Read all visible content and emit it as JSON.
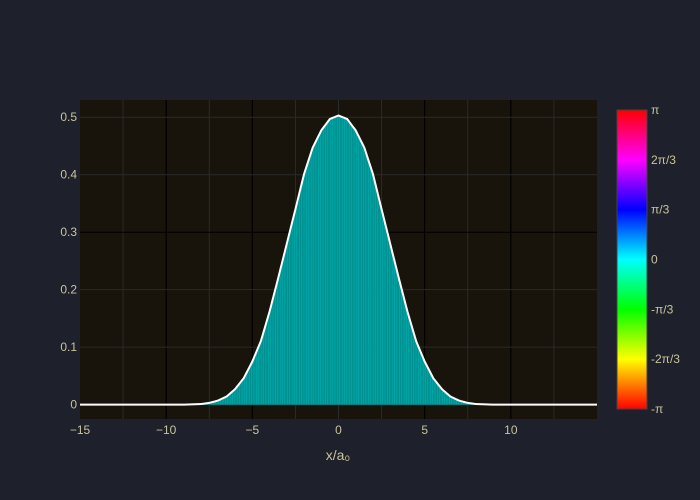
{
  "colors": {
    "page_bg": "#1e212b",
    "plot_bg": "#18130b",
    "grid": "#2a2a2a",
    "zero_line": "#000000",
    "fill": "#00a3a3",
    "fill_stroke": "#007f7f",
    "curve": "#ffffff",
    "tick_text": "#c9c39a",
    "axis_title": "#c9c39a"
  },
  "chart_data": {
    "type": "area",
    "title": "",
    "xlabel": "x/a₀",
    "ylabel": "",
    "xlim": [
      -15,
      15
    ],
    "ylim": [
      -0.025,
      0.53
    ],
    "xticks": [
      -15,
      -10,
      -5,
      0,
      5,
      10
    ],
    "xtick_labels": [
      "−15",
      "−10",
      "−5",
      "0",
      "5",
      "10"
    ],
    "yticks": [
      0,
      0.1,
      0.2,
      0.3,
      0.4,
      0.5
    ],
    "ytick_labels": [
      "0",
      "0.1",
      "0.2",
      "0.3",
      "0.4",
      "0.5"
    ],
    "grid": true,
    "series": [
      {
        "x": [
          -15,
          -14,
          -13,
          -12,
          -11,
          -10,
          -9,
          -8,
          -7.5,
          -7,
          -6.5,
          -6,
          -5.5,
          -5,
          -4.5,
          -4,
          -3.5,
          -3,
          -2.5,
          -2,
          -1.5,
          -1,
          -0.5,
          0,
          0.5,
          1,
          1.5,
          2,
          2.5,
          3,
          3.5,
          4,
          4.5,
          5,
          5.5,
          6,
          6.5,
          7,
          7.5,
          8,
          9,
          10,
          11,
          12,
          13,
          14,
          15
        ],
        "y": [
          0,
          0,
          0,
          0,
          0,
          0,
          0,
          0.001,
          0.003,
          0.007,
          0.014,
          0.027,
          0.046,
          0.075,
          0.111,
          0.162,
          0.22,
          0.28,
          0.34,
          0.401,
          0.447,
          0.477,
          0.497,
          0.503,
          0.497,
          0.477,
          0.447,
          0.401,
          0.34,
          0.28,
          0.22,
          0.162,
          0.111,
          0.075,
          0.046,
          0.027,
          0.014,
          0.007,
          0.003,
          0.001,
          0,
          0,
          0,
          0,
          0,
          0,
          0
        ]
      }
    ],
    "colorbar": {
      "tick_labels": [
        "π",
        "2π/3",
        "π/3",
        "0",
        "-π/3",
        "-2π/3",
        "-π"
      ],
      "stops": [
        "#ff0000",
        "#ff00ff",
        "#0000ff",
        "#00ffff",
        "#00ff00",
        "#ffff00",
        "#ff0000"
      ]
    }
  }
}
